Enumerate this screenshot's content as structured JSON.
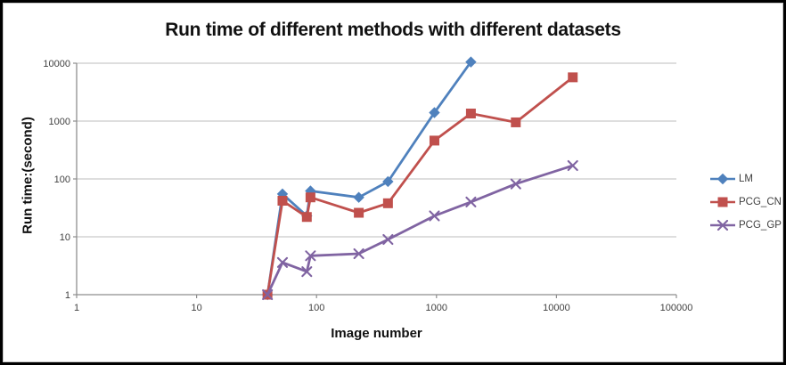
{
  "chart_data": {
    "type": "line",
    "title": "Run time of different methods with different datasets",
    "xlabel": "Image number",
    "ylabel": "Run time:(second)",
    "x_scale": "log",
    "y_scale": "log",
    "xlim": [
      1,
      100000
    ],
    "ylim": [
      1,
      10000
    ],
    "x_ticks": [
      1,
      10,
      100,
      1000,
      10000,
      100000
    ],
    "y_ticks": [
      1,
      10,
      100,
      1000,
      10000
    ],
    "grid": "horizontal-only",
    "legend_position": "right",
    "colors": {
      "gridline": "#c9c9c9",
      "axis": "#8e8e8e",
      "tick_text": "#3f3f3f",
      "title_text": "#111111",
      "frame_border": "#000000"
    },
    "series": [
      {
        "name": "LM",
        "color": "#4F81BD",
        "marker": "diamond",
        "x": [
          39,
          52,
          83,
          89,
          225,
          394,
          961,
          1936
        ],
        "y": [
          1,
          55,
          23,
          62,
          48,
          90,
          1400,
          10500
        ]
      },
      {
        "name": "PCG_CN",
        "color": "#C0504D",
        "marker": "square",
        "x": [
          39,
          52,
          83,
          89,
          225,
          394,
          961,
          1936,
          4585,
          13682
        ],
        "y": [
          1,
          42,
          22,
          48,
          26,
          38,
          460,
          1350,
          950,
          5700
        ]
      },
      {
        "name": "PCG_GP",
        "color": "#8064A2",
        "marker": "x",
        "x": [
          39,
          52,
          83,
          89,
          225,
          394,
          961,
          1936,
          4585,
          13682
        ],
        "y": [
          1,
          3.6,
          2.5,
          4.7,
          5.1,
          9,
          23,
          40,
          82,
          170
        ]
      }
    ]
  }
}
